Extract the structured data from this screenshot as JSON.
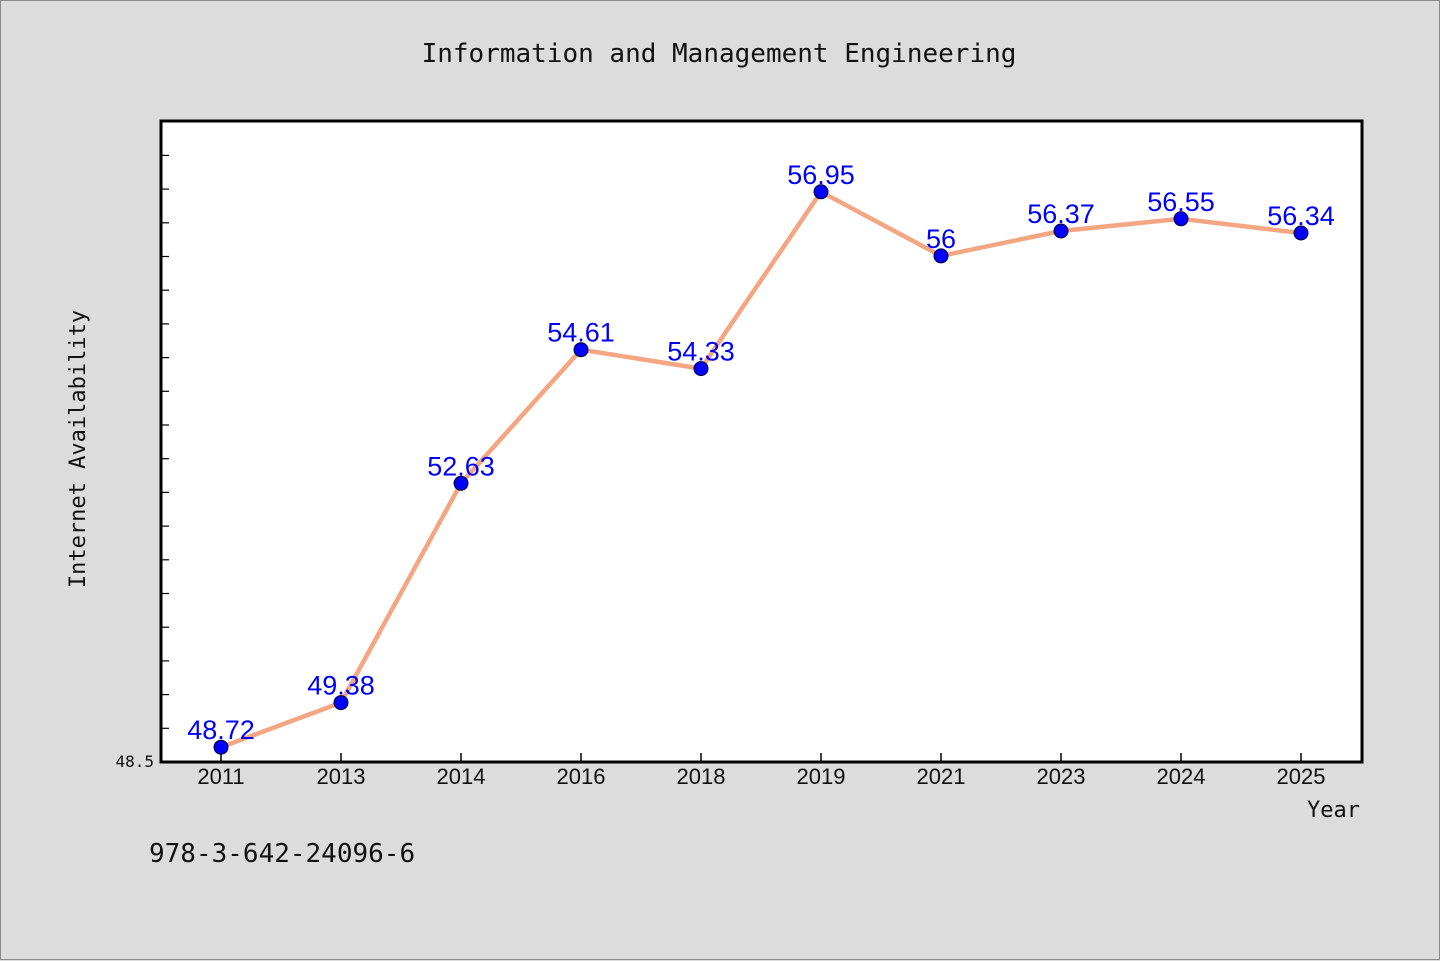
{
  "chart_data": {
    "type": "line",
    "title": "Information and Management Engineering",
    "xlabel": "Year",
    "ylabel": "Internet Availability",
    "categories": [
      "2011",
      "2013",
      "2014",
      "2016",
      "2018",
      "2019",
      "2021",
      "2023",
      "2024",
      "2025"
    ],
    "series": [
      {
        "values": [
          48.72,
          49.38,
          52.63,
          54.61,
          54.33,
          56.95,
          56,
          56.37,
          56.55,
          56.34
        ],
        "labels": [
          "48.72",
          "49.38",
          "52.63",
          "54.61",
          "54.33",
          "56.95",
          "56",
          "56.37",
          "56.55",
          "56.34"
        ],
        "line_color": "#f4a582",
        "marker_color": "#0000ff",
        "label_color": "#0000ff"
      }
    ],
    "ylim": [
      48.5,
      58
    ],
    "y_tick_labels": [
      "48.5"
    ],
    "grid": false,
    "legend": "none"
  },
  "footer_text": "978-3-642-24096-6"
}
